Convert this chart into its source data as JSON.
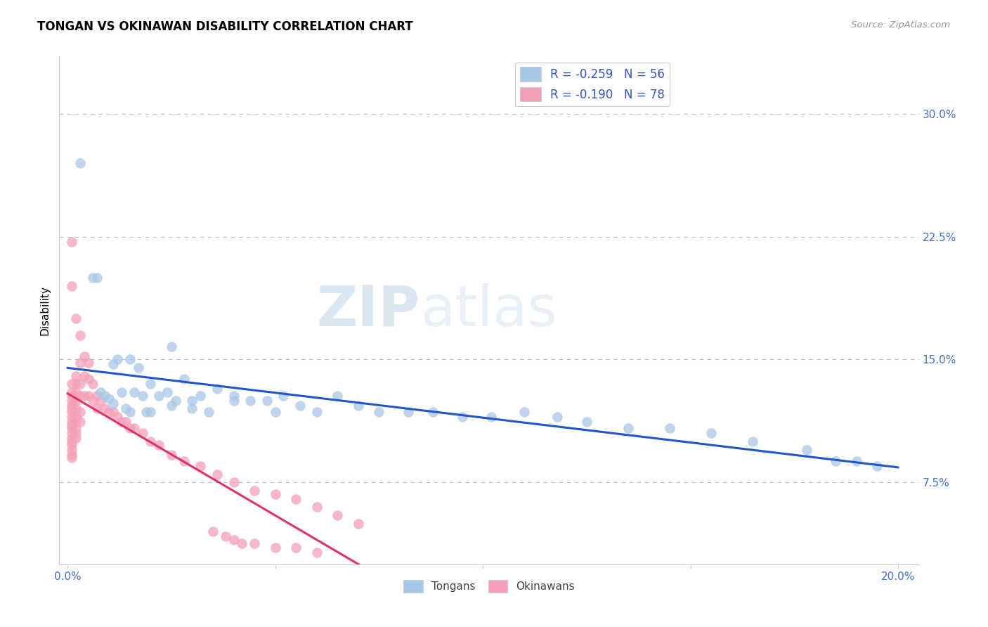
{
  "title": "TONGAN VS OKINAWAN DISABILITY CORRELATION CHART",
  "source": "Source: ZipAtlas.com",
  "ylabel": "Disability",
  "ytick_labels": [
    "7.5%",
    "15.0%",
    "22.5%",
    "30.0%"
  ],
  "ytick_values": [
    0.075,
    0.15,
    0.225,
    0.3
  ],
  "xlim": [
    -0.002,
    0.205
  ],
  "ylim": [
    0.025,
    0.335
  ],
  "tongan_color": "#a8c8e8",
  "okinawan_color": "#f4a0b8",
  "trendline_tongan_color": "#2255cc",
  "trendline_okinawan_color": "#dd3366",
  "legend_R_tongan": "R = -0.259",
  "legend_N_tongan": "N = 56",
  "legend_R_okinawan": "R = -0.190",
  "legend_N_okinawan": "N = 78",
  "watermark_zip": "ZIP",
  "watermark_atlas": "atlas",
  "tongan_x": [
    0.003,
    0.006,
    0.007,
    0.008,
    0.009,
    0.01,
    0.011,
    0.011,
    0.012,
    0.013,
    0.014,
    0.015,
    0.016,
    0.017,
    0.018,
    0.019,
    0.02,
    0.022,
    0.024,
    0.025,
    0.026,
    0.028,
    0.03,
    0.032,
    0.034,
    0.036,
    0.04,
    0.044,
    0.048,
    0.052,
    0.056,
    0.06,
    0.065,
    0.07,
    0.075,
    0.082,
    0.088,
    0.095,
    0.102,
    0.11,
    0.118,
    0.125,
    0.135,
    0.145,
    0.155,
    0.165,
    0.178,
    0.185,
    0.19,
    0.195,
    0.05,
    0.04,
    0.03,
    0.025,
    0.02,
    0.015
  ],
  "tongan_y": [
    0.27,
    0.2,
    0.2,
    0.13,
    0.128,
    0.126,
    0.123,
    0.147,
    0.15,
    0.13,
    0.12,
    0.15,
    0.13,
    0.145,
    0.128,
    0.118,
    0.135,
    0.128,
    0.13,
    0.158,
    0.125,
    0.138,
    0.125,
    0.128,
    0.118,
    0.132,
    0.128,
    0.125,
    0.125,
    0.128,
    0.122,
    0.118,
    0.128,
    0.122,
    0.118,
    0.118,
    0.118,
    0.115,
    0.115,
    0.118,
    0.115,
    0.112,
    0.108,
    0.108,
    0.105,
    0.1,
    0.095,
    0.088,
    0.088,
    0.085,
    0.118,
    0.125,
    0.12,
    0.122,
    0.118,
    0.118
  ],
  "okinawan_x": [
    0.001,
    0.001,
    0.001,
    0.001,
    0.001,
    0.001,
    0.001,
    0.001,
    0.001,
    0.001,
    0.001,
    0.001,
    0.001,
    0.001,
    0.001,
    0.001,
    0.001,
    0.001,
    0.001,
    0.001,
    0.002,
    0.002,
    0.002,
    0.002,
    0.002,
    0.002,
    0.002,
    0.002,
    0.002,
    0.002,
    0.002,
    0.003,
    0.003,
    0.003,
    0.003,
    0.003,
    0.003,
    0.004,
    0.004,
    0.004,
    0.005,
    0.005,
    0.005,
    0.006,
    0.006,
    0.007,
    0.007,
    0.008,
    0.009,
    0.01,
    0.011,
    0.012,
    0.013,
    0.014,
    0.015,
    0.016,
    0.018,
    0.02,
    0.022,
    0.025,
    0.028,
    0.032,
    0.036,
    0.04,
    0.045,
    0.05,
    0.055,
    0.06,
    0.065,
    0.07,
    0.035,
    0.04,
    0.045,
    0.055,
    0.06,
    0.038,
    0.042,
    0.05
  ],
  "okinawan_y": [
    0.128,
    0.125,
    0.122,
    0.12,
    0.118,
    0.115,
    0.112,
    0.11,
    0.108,
    0.105,
    0.102,
    0.1,
    0.098,
    0.095,
    0.092,
    0.09,
    0.135,
    0.13,
    0.195,
    0.222,
    0.14,
    0.135,
    0.13,
    0.125,
    0.12,
    0.115,
    0.175,
    0.112,
    0.108,
    0.105,
    0.102,
    0.165,
    0.148,
    0.135,
    0.128,
    0.118,
    0.112,
    0.152,
    0.14,
    0.128,
    0.148,
    0.138,
    0.128,
    0.135,
    0.125,
    0.128,
    0.12,
    0.125,
    0.12,
    0.118,
    0.118,
    0.115,
    0.112,
    0.112,
    0.108,
    0.108,
    0.105,
    0.1,
    0.098,
    0.092,
    0.088,
    0.085,
    0.08,
    0.075,
    0.07,
    0.068,
    0.065,
    0.06,
    0.055,
    0.05,
    0.045,
    0.04,
    0.038,
    0.035,
    0.032,
    0.042,
    0.038,
    0.035
  ],
  "trendline_okinawan_x_end": 0.08,
  "trendline_okinawan_dashed_start": 0.08
}
